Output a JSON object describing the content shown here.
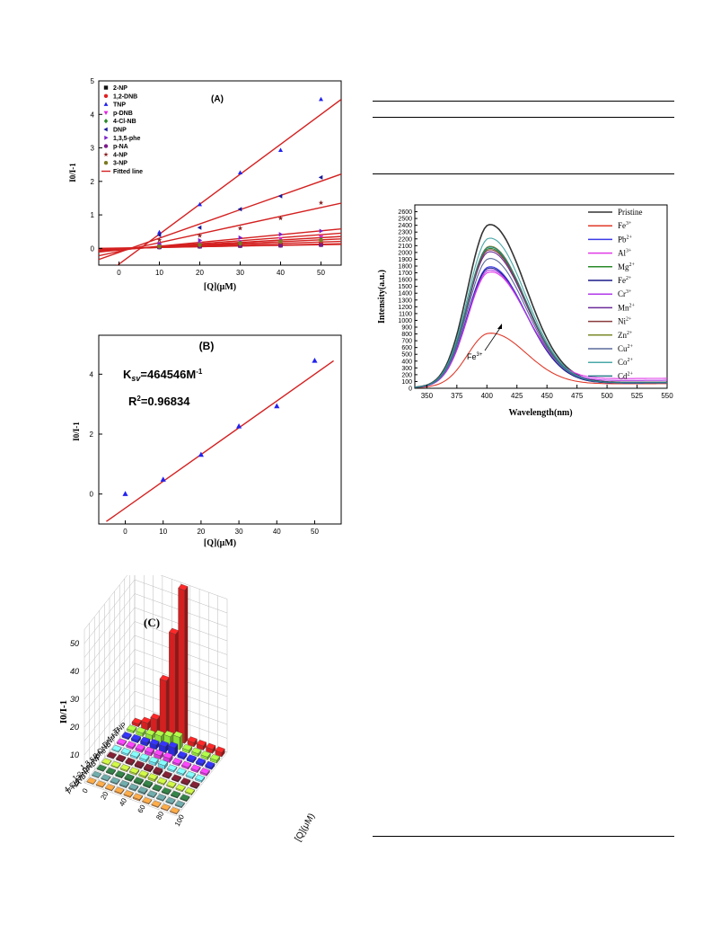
{
  "panelA": {
    "label": "(A)",
    "xlabel": "[Q](μM)",
    "ylabel": "I0/I-1",
    "legend_fit": "Fitted line",
    "chart_data": {
      "type": "scatter",
      "title": "(A)",
      "xlabel": "[Q](μM)",
      "ylabel": "I0/I-1",
      "xlim": [
        -5,
        55
      ],
      "ylim": [
        -0.5,
        5
      ],
      "xticks": [
        0,
        10,
        20,
        30,
        40,
        50
      ],
      "yticks": [
        0,
        1,
        2,
        3,
        4,
        5
      ],
      "x": [
        10,
        20,
        30,
        40,
        50
      ],
      "series": [
        {
          "name": "2-NP",
          "color": "#111111",
          "marker": "square",
          "values": [
            0.04,
            0.06,
            0.08,
            0.09,
            0.11
          ]
        },
        {
          "name": "1,2-DNB",
          "color": "#e02020",
          "marker": "circle",
          "values": [
            0.05,
            0.08,
            0.1,
            0.12,
            0.14
          ]
        },
        {
          "name": "TNP",
          "color": "#2222ee",
          "marker": "triangle",
          "values": [
            0.48,
            1.31,
            2.26,
            2.93,
            4.45
          ]
        },
        {
          "name": "p-DNB",
          "color": "#e020e0",
          "marker": "tri-down",
          "values": [
            0.08,
            0.14,
            0.2,
            0.28,
            0.34
          ]
        },
        {
          "name": "4-Cl-NB",
          "color": "#2a8a2a",
          "marker": "diamond",
          "values": [
            0.06,
            0.12,
            0.17,
            0.22,
            0.27
          ]
        },
        {
          "name": "DNP",
          "color": "#1a1a99",
          "marker": "tri-left",
          "values": [
            0.4,
            0.62,
            1.17,
            1.56,
            2.12
          ]
        },
        {
          "name": "1,3,5-phe",
          "color": "#7a22cc",
          "marker": "tri-right",
          "values": [
            0.14,
            0.24,
            0.32,
            0.42,
            0.52
          ]
        },
        {
          "name": "p-NA",
          "color": "#7a1a8a",
          "marker": "circle",
          "values": [
            0.03,
            0.05,
            0.07,
            0.08,
            0.1
          ]
        },
        {
          "name": "4-NP",
          "color": "#882222",
          "marker": "star",
          "values": [
            0.25,
            0.38,
            0.6,
            0.9,
            1.36
          ]
        },
        {
          "name": "3-NP",
          "color": "#7a7a22",
          "marker": "circle",
          "values": [
            0.06,
            0.1,
            0.14,
            0.2,
            0.24
          ]
        }
      ],
      "fits": [
        {
          "slope": 0.0894,
          "intercept": -0.47
        },
        {
          "slope": 0.0425,
          "intercept": -0.12
        },
        {
          "slope": 0.0262,
          "intercept": -0.09
        },
        {
          "slope": 0.0115,
          "intercept": -0.05
        },
        {
          "slope": 0.009,
          "intercept": -0.04
        },
        {
          "slope": 0.007,
          "intercept": -0.03
        },
        {
          "slope": 0.0055,
          "intercept": -0.02
        },
        {
          "slope": 0.004,
          "intercept": -0.01
        },
        {
          "slope": 0.0025,
          "intercept": 0.0
        },
        {
          "slope": 0.002,
          "intercept": 0.01
        }
      ],
      "legend_position": "top-left",
      "grid": false
    }
  },
  "panelB": {
    "label": "(B)",
    "xlabel": "[Q](μM)",
    "ylabel": "I0/I-1",
    "ksv_text": "K",
    "ksv_sub": "sv",
    "ksv_value": "=464546M",
    "ksv_sup": "-1",
    "r2_text": "R",
    "r2_sup": "2",
    "r2_value": "=0.96834",
    "chart_data": {
      "type": "scatter",
      "title": "(B)",
      "xlabel": "[Q](μM)",
      "ylabel": "I0/I-1",
      "xlim": [
        -7,
        57
      ],
      "ylim": [
        -1,
        5.3
      ],
      "xticks": [
        0,
        10,
        20,
        30,
        40,
        50
      ],
      "yticks": [
        0,
        2,
        4
      ],
      "x": [
        0,
        10,
        20,
        30,
        40,
        50
      ],
      "values": [
        0.0,
        0.48,
        1.31,
        2.26,
        2.93,
        4.45
      ],
      "fit": {
        "slope": 0.0894,
        "intercept": -0.47,
        "x_range": [
          -5,
          55
        ]
      },
      "grid": false
    }
  },
  "panelC": {
    "label": "(C)",
    "zlabel": "I0/I-1",
    "qlabel": "[Q](μM)",
    "chart_data": {
      "type": "bar",
      "title": "(C)",
      "zlabel": "I0/I-1",
      "xlabel": "[Q](μM)",
      "zticks": [
        0,
        10,
        20,
        30,
        40,
        50
      ],
      "qticks": [
        0,
        20,
        40,
        60,
        80,
        100
      ],
      "q": [
        10,
        20,
        30,
        40,
        50,
        60,
        70,
        80,
        90,
        100
      ],
      "series": [
        {
          "name": "TNP",
          "color": "#d42020",
          "values": [
            1.0,
            2.5,
            5.0,
            20.0,
            38.0,
            55.0,
            1.5,
            1.5,
            1.5,
            1.5
          ]
        },
        {
          "name": "4-NP",
          "color": "#8fe03a",
          "values": [
            0.8,
            1.2,
            1.6,
            2.5,
            3.5,
            4.5,
            1.0,
            1.0,
            1.0,
            1.0
          ]
        },
        {
          "name": "DNP",
          "color": "#2a2ad8",
          "values": [
            0.6,
            0.9,
            1.2,
            1.6,
            2.2,
            3.0,
            0.8,
            0.8,
            0.8,
            0.8
          ]
        },
        {
          "name": "p-DNB",
          "color": "#d838d8",
          "values": [
            0.5,
            0.7,
            0.9,
            1.1,
            1.3,
            1.5,
            0.7,
            0.7,
            0.7,
            0.7
          ]
        },
        {
          "name": "1,3,5-phe",
          "color": "#6ad8e8",
          "values": [
            0.4,
            0.6,
            0.7,
            0.9,
            1.0,
            1.2,
            0.6,
            0.6,
            0.6,
            0.6
          ]
        },
        {
          "name": "2-NP",
          "color": "#6a1a2a",
          "values": [
            0.3,
            0.5,
            0.6,
            0.7,
            0.8,
            0.9,
            0.5,
            0.5,
            0.5,
            0.5
          ]
        },
        {
          "name": "1,2-DNB",
          "color": "#a8c838",
          "values": [
            0.3,
            0.4,
            0.5,
            0.6,
            0.7,
            0.8,
            0.5,
            0.5,
            0.5,
            0.5
          ]
        },
        {
          "name": "3-NP",
          "color": "#2a6a3a",
          "values": [
            0.3,
            0.4,
            0.5,
            0.6,
            0.6,
            0.7,
            0.4,
            0.4,
            0.4,
            0.4
          ]
        },
        {
          "name": "4-Cl-NB",
          "color": "#5a8a8a",
          "values": [
            0.2,
            0.3,
            0.4,
            0.5,
            0.5,
            0.6,
            0.4,
            0.4,
            0.4,
            0.4
          ]
        },
        {
          "name": "p-NA",
          "color": "#e08a3a",
          "values": [
            0.2,
            0.3,
            0.3,
            0.4,
            0.4,
            0.5,
            0.3,
            0.3,
            0.3,
            0.3
          ]
        }
      ]
    }
  },
  "panelD": {
    "xlabel": "Wavelength(nm)",
    "ylabel": "Intensity(a.u.)",
    "annotation": "Fe",
    "annotation_sup": "3+",
    "chart_data": {
      "type": "line",
      "xlabel": "Wavelength(nm)",
      "ylabel": "Intensity(a.u.)",
      "xlim": [
        340,
        550
      ],
      "ylim": [
        0,
        2700
      ],
      "xticks": [
        350,
        375,
        400,
        425,
        450,
        475,
        500,
        525,
        550
      ],
      "yticks": [
        0,
        100,
        200,
        300,
        400,
        500,
        600,
        700,
        800,
        900,
        1000,
        1100,
        1200,
        1300,
        1400,
        1500,
        1600,
        1700,
        1800,
        1900,
        2000,
        2100,
        2200,
        2300,
        2400,
        2500,
        2600
      ],
      "peak_x": 402,
      "legend_position": "top-right",
      "series": [
        {
          "name": "Pristine",
          "ion": "Pristine",
          "sup": "",
          "color": "#333333",
          "peak": 2400,
          "tail": 80
        },
        {
          "name": "Fe3+",
          "ion": "Fe",
          "sup": "3+",
          "color": "#e03a2a",
          "peak": 800,
          "tail": 60
        },
        {
          "name": "Pb2+",
          "ion": "Pb",
          "sup": "2+",
          "color": "#3a3ae8",
          "peak": 1780,
          "tail": 70
        },
        {
          "name": "Al3+",
          "ion": "Al",
          "sup": "3+",
          "color": "#e03ae8",
          "peak": 1700,
          "tail": 140
        },
        {
          "name": "Mg2+",
          "ion": "Mg",
          "sup": "2+",
          "color": "#2a8a2a",
          "peak": 2050,
          "tail": 75
        },
        {
          "name": "Fe2+",
          "ion": "Fe",
          "sup": "2+",
          "color": "#1a1a8a",
          "peak": 1760,
          "tail": 70
        },
        {
          "name": "Cr3+",
          "ion": "Cr",
          "sup": "3+",
          "color": "#b23ae8",
          "peak": 1730,
          "tail": 110
        },
        {
          "name": "Mn2+",
          "ion": "Mn",
          "sup": "2+",
          "color": "#6a2a9a",
          "peak": 2000,
          "tail": 75
        },
        {
          "name": "Ni2+",
          "ion": "Ni",
          "sup": "2+",
          "color": "#8a3a3a",
          "peak": 2030,
          "tail": 75
        },
        {
          "name": "Zn2+",
          "ion": "Zn",
          "sup": "2+",
          "color": "#7a8a2a",
          "peak": 2080,
          "tail": 75
        },
        {
          "name": "Cu2+",
          "ion": "Cu",
          "sup": "2+",
          "color": "#5a6a9a",
          "peak": 1900,
          "tail": 75
        },
        {
          "name": "Co2+",
          "ion": "Co",
          "sup": "2+",
          "color": "#4aa8a8",
          "peak": 2200,
          "tail": 75
        },
        {
          "name": "Cd2+",
          "ion": "Cd",
          "sup": "2+",
          "color": "#2a7a8a",
          "peak": 2070,
          "tail": 75
        }
      ]
    }
  }
}
